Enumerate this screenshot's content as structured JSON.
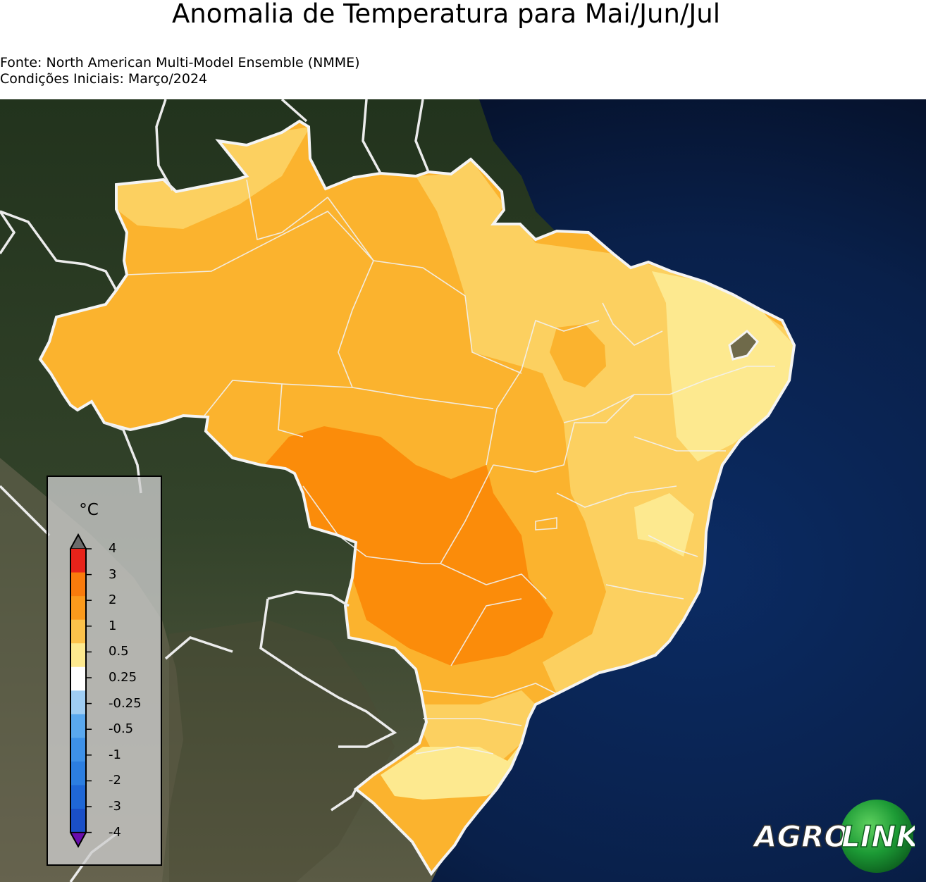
{
  "title": "Anomalia de Temperatura para Mai/Jun/Jul",
  "subtitle_source": "Fonte: North American Multi-Model Ensemble (NMME)",
  "subtitle_conditions": "Condições Iniciais: Março/2024",
  "legend": {
    "unit": "°C",
    "ticks": [
      "4",
      "3",
      "2",
      "1",
      "0.5",
      "0.25",
      "-0.25",
      "-0.5",
      "-1",
      "-2",
      "-3",
      "-4"
    ],
    "colors": [
      "#e8231a",
      "#f97b0c",
      "#fb9a1c",
      "#fcc24b",
      "#fde98f",
      "#ffffff",
      "#9fcdf3",
      "#5aa8ee",
      "#3e91e8",
      "#2c7ee0",
      "#1f67d6",
      "#1a4fc7"
    ],
    "extend_max_color": "#6b6b6b",
    "extend_min_color": "#6a0dad"
  },
  "logo": {
    "text_left": "AGRO",
    "text_right": "LINK"
  },
  "map": {
    "land_color": "#2b3a22",
    "ocean_color": "#0a1f48",
    "anomaly_colors": {
      "a0_25_0_5": "#fde98f",
      "a0_5_1": "#fcd060",
      "a1_2": "#fbb32e",
      "a2_3": "#fb8c0a"
    }
  }
}
